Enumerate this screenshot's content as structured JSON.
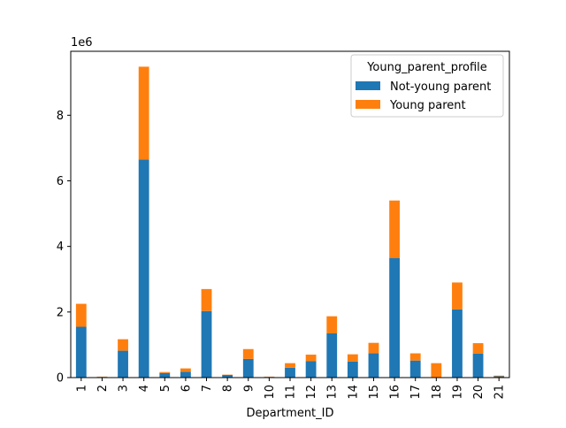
{
  "chart_data": {
    "type": "bar",
    "stacked": true,
    "title": "",
    "xlabel": "Department_ID",
    "ylabel": "",
    "y_offset_label": "1e6",
    "ylim": [
      0,
      9.95
    ],
    "yticks": [
      0,
      2,
      4,
      6,
      8
    ],
    "categories": [
      "1",
      "2",
      "3",
      "4",
      "5",
      "6",
      "7",
      "8",
      "9",
      "10",
      "11",
      "12",
      "13",
      "14",
      "15",
      "16",
      "17",
      "18",
      "19",
      "20",
      "21"
    ],
    "series": [
      {
        "name": "Not-young parent",
        "color": "#1f77b4",
        "values": [
          1.55,
          0.02,
          0.82,
          6.65,
          0.14,
          0.18,
          2.03,
          0.08,
          0.57,
          0.02,
          0.3,
          0.5,
          1.35,
          0.49,
          0.74,
          3.65,
          0.52,
          0.0,
          2.08,
          0.73,
          0.04
        ]
      },
      {
        "name": "Young parent",
        "color": "#ff7f0e",
        "values": [
          0.7,
          0.01,
          0.35,
          2.83,
          0.03,
          0.1,
          0.67,
          0.01,
          0.3,
          0.01,
          0.14,
          0.2,
          0.52,
          0.22,
          0.32,
          1.75,
          0.22,
          0.44,
          0.82,
          0.32,
          0.02
        ]
      }
    ],
    "legend": {
      "title": "Young_parent_profile",
      "position": "top-right"
    },
    "grid": false
  }
}
